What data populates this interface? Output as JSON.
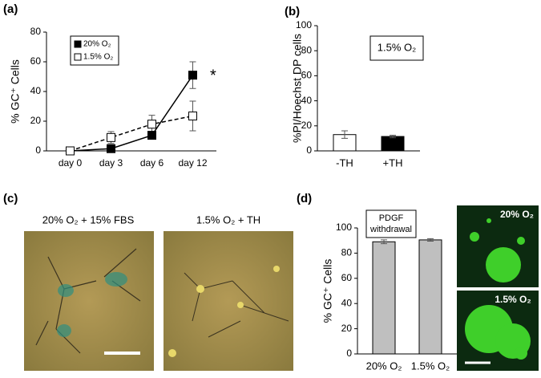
{
  "chart_data": [
    {
      "type": "line",
      "panel_label": "(a)",
      "y_label": "% GC⁺ Cells",
      "categories": [
        "day 0",
        "day 3",
        "day 6",
        "day 12"
      ],
      "series": [
        {
          "name": "20% O₂",
          "color": "#000000",
          "marker_fill": "#000000",
          "line_style": "solid",
          "values": [
            0,
            1.5,
            10.5,
            51
          ],
          "errors": [
            0,
            1,
            1,
            9
          ]
        },
        {
          "name": "1.5% O₂",
          "color": "#000000",
          "marker_fill": "#ffffff",
          "line_style": "dashed",
          "values": [
            0,
            9,
            18,
            23.5
          ],
          "errors": [
            0,
            4,
            6,
            10
          ]
        }
      ],
      "ylim": [
        0,
        80
      ],
      "yticks": [
        0,
        20,
        40,
        60,
        80
      ],
      "legend": "upper-left",
      "annotation": "*"
    },
    {
      "type": "bar",
      "panel_label": "(b)",
      "y_label": "%PI/Hoechst DP cells",
      "categories": [
        "-TH",
        "+TH"
      ],
      "values": [
        13,
        11.5
      ],
      "errors": [
        3,
        1
      ],
      "colors": [
        "#ffffff",
        "#000000"
      ],
      "ylim": [
        0,
        100
      ],
      "yticks": [
        0,
        20,
        40,
        60,
        80,
        100
      ],
      "annotation_lines": [
        "1.5% O₂"
      ]
    },
    {
      "type": "bar",
      "panel_label": "(d)",
      "y_label": "% GC⁺ Cells",
      "categories": [
        "20% O₂",
        "1.5% O₂"
      ],
      "values": [
        89,
        90.5
      ],
      "errors": [
        1.5,
        1
      ],
      "colors": [
        "#bfbfbf",
        "#bfbfbf"
      ],
      "ylim": [
        0,
        100
      ],
      "yticks": [
        0,
        20,
        40,
        60,
        80,
        100
      ],
      "annotation_lines": [
        "PDGF",
        "withdrawal"
      ]
    }
  ],
  "micrographs": {
    "panel_label": "(c)",
    "phase_captions": [
      "20% O₂ + 15% FBS",
      "1.5% O₂ + TH"
    ],
    "fluorescence_captions": [
      "20% O₂",
      "1.5% O₂"
    ]
  }
}
